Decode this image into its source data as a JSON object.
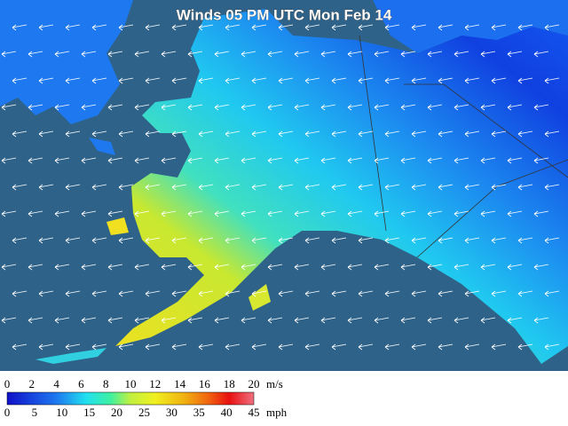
{
  "title": "Winds 05 PM UTC Mon Feb 14",
  "legend": {
    "ms_labels": [
      0,
      2,
      4,
      6,
      8,
      10,
      12,
      14,
      16,
      18,
      20
    ],
    "ms_unit": "m/s",
    "mph_labels": [
      0,
      5,
      10,
      15,
      20,
      25,
      30,
      35,
      40,
      45
    ],
    "mph_unit": "mph"
  }
}
